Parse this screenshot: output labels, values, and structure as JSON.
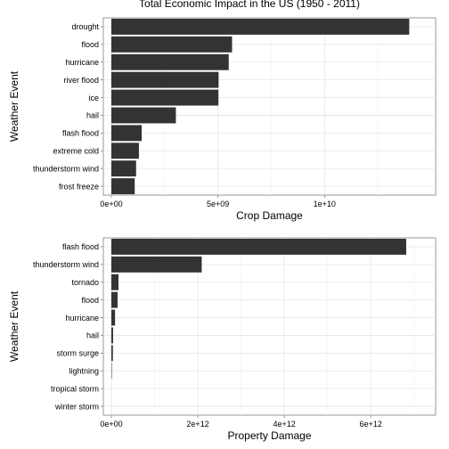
{
  "title": "Total Economic Impact in the US (1950 - 2011)",
  "chart_data": [
    {
      "type": "bar",
      "orientation": "horizontal",
      "categories": [
        "drought",
        "flood",
        "hurricane",
        "river flood",
        "ice",
        "hail",
        "flash flood",
        "extreme cold",
        "thunderstorm wind",
        "frost freeze"
      ],
      "values": [
        13972566000,
        5661968450,
        5505292800,
        5029459000,
        5022113500,
        3025954473,
        1421317100,
        1292973000,
        1159505108,
        1094086000
      ],
      "xlabel": "Crop Damage",
      "ylabel": "Weather Event",
      "xlim": [
        0,
        14500000000
      ],
      "xticks": [
        0,
        5000000000,
        10000000000
      ],
      "xtick_labels": [
        "0e+00",
        "5e+09",
        "1e+10"
      ],
      "grid": true
    },
    {
      "type": "bar",
      "orientation": "horizontal",
      "categories": [
        "flash flood",
        "thunderstorm wind",
        "tornado",
        "flood",
        "hurricane",
        "hail",
        "storm surge",
        "lightning",
        "tropical storm",
        "winter storm"
      ],
      "values": [
        6820000000000,
        2090000000000,
        165000000000,
        144000000000,
        85000000000,
        40000000000,
        35000000000,
        10000000000,
        0,
        0
      ],
      "xlabel": "Property Damage",
      "ylabel": "Weather Event",
      "xlim": [
        0,
        7150000000000
      ],
      "xticks": [
        0,
        2000000000000,
        4000000000000,
        6000000000000
      ],
      "xtick_labels": [
        "0e+00",
        "2e+12",
        "4e+12",
        "6e+12"
      ],
      "grid": true
    }
  ]
}
